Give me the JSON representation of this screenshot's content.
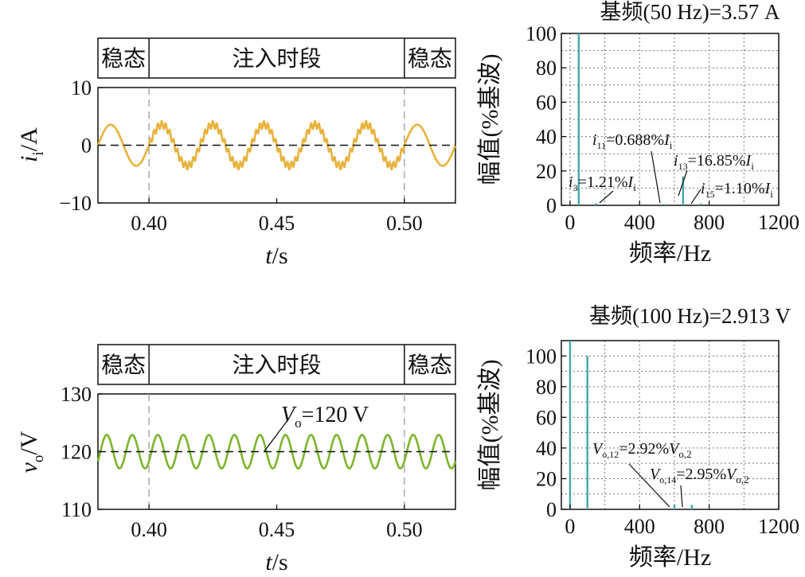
{
  "chart_data": [
    {
      "type": "line",
      "xlabel": "t/s",
      "ylabel": "i_i/A",
      "xlim": [
        0.38,
        0.52
      ],
      "ylim": [
        -10,
        10
      ],
      "x_ticks": [
        "0.40",
        "0.45",
        "0.50"
      ],
      "y_ticks": [
        "10",
        "0",
        "−10"
      ],
      "regions": [
        {
          "label": "稳态",
          "x": [
            0.38,
            0.4
          ]
        },
        {
          "label": "注入时段",
          "x": [
            0.4,
            0.5
          ]
        },
        {
          "label": "稳态",
          "x": [
            0.5,
            0.52
          ]
        }
      ],
      "series": [
        {
          "color": "#e8b23c",
          "fundamental_hz": 50,
          "amplitude": 3.57,
          "injected_harmonic": 13,
          "injected_amplitude_pct": 16.85
        }
      ],
      "reference_line": {
        "y": 0,
        "style": "dashed"
      },
      "markers_x": [
        0.4,
        0.5
      ],
      "grid": false
    },
    {
      "type": "bar",
      "title": "基频(50 Hz)=3.57 A",
      "xlabel": "频率/Hz",
      "ylabel": "幅值(%基波)",
      "xlim": [
        -50,
        1200
      ],
      "ylim": [
        0,
        100
      ],
      "x_ticks": [
        "0",
        "400",
        "800",
        "1200"
      ],
      "y_ticks": [
        "0",
        "20",
        "40",
        "60",
        "80",
        "100"
      ],
      "grid": true,
      "bar_color": "#45a8a8",
      "bars": [
        {
          "freq": 50,
          "value": 100
        },
        {
          "freq": 150,
          "value": 1.21
        },
        {
          "freq": 550,
          "value": 0.688
        },
        {
          "freq": 650,
          "value": 16.85
        },
        {
          "freq": 750,
          "value": 1.1
        }
      ],
      "annotations": [
        {
          "main": "i",
          "sub": "11",
          "tail": "=0.688%",
          "main2": "I",
          "sub2": "i"
        },
        {
          "main": "i",
          "sub": "13",
          "tail": "=16.85%",
          "main2": "I",
          "sub2": "i"
        },
        {
          "main": "i",
          "sub": "3",
          "tail": "=1.21%",
          "main2": "I",
          "sub2": "i"
        },
        {
          "main": "i",
          "sub": "15",
          "tail": "=1.10%",
          "main2": "I",
          "sub2": "i"
        }
      ]
    },
    {
      "type": "line",
      "xlabel": "t/s",
      "ylabel": "v_o/V",
      "xlim": [
        0.38,
        0.52
      ],
      "ylim": [
        110,
        130
      ],
      "x_ticks": [
        "0.40",
        "0.45",
        "0.50"
      ],
      "y_ticks": [
        "130",
        "120",
        "110"
      ],
      "regions": [
        {
          "label": "稳态",
          "x": [
            0.38,
            0.4
          ]
        },
        {
          "label": "注入时段",
          "x": [
            0.4,
            0.5
          ]
        },
        {
          "label": "稳态",
          "x": [
            0.5,
            0.52
          ]
        }
      ],
      "series": [
        {
          "color": "#7cb52b",
          "dc_offset": 120,
          "ripple_hz": 100,
          "ripple_amplitude": 2.913
        }
      ],
      "reference_line": {
        "y": 120,
        "style": "dashed"
      },
      "markers_x": [
        0.4,
        0.5
      ],
      "annotation": {
        "main": "V",
        "sub": "o",
        "tail": "=120 V"
      },
      "grid": false
    },
    {
      "type": "bar",
      "title": "基频(100 Hz)=2.913 V",
      "xlabel": "频率/Hz",
      "ylabel": "幅值(%基波)",
      "xlim": [
        -50,
        1200
      ],
      "ylim": [
        0,
        110
      ],
      "x_ticks": [
        "0",
        "400",
        "800",
        "1200"
      ],
      "y_ticks": [
        "0",
        "20",
        "40",
        "60",
        "80",
        "100"
      ],
      "grid": true,
      "bar_color": "#45a8a8",
      "bars": [
        {
          "freq": 0,
          "value": 110
        },
        {
          "freq": 100,
          "value": 100
        },
        {
          "freq": 600,
          "value": 2.92
        },
        {
          "freq": 700,
          "value": 2.95
        }
      ],
      "annotations": [
        {
          "main": "V",
          "sub": "o,12",
          "tail": "=2.92%",
          "main2": "V",
          "sub2": "o,2"
        },
        {
          "main": "V",
          "sub": "o,14",
          "tail": "=2.95%",
          "main2": "V",
          "sub2": "o,2"
        }
      ]
    }
  ]
}
